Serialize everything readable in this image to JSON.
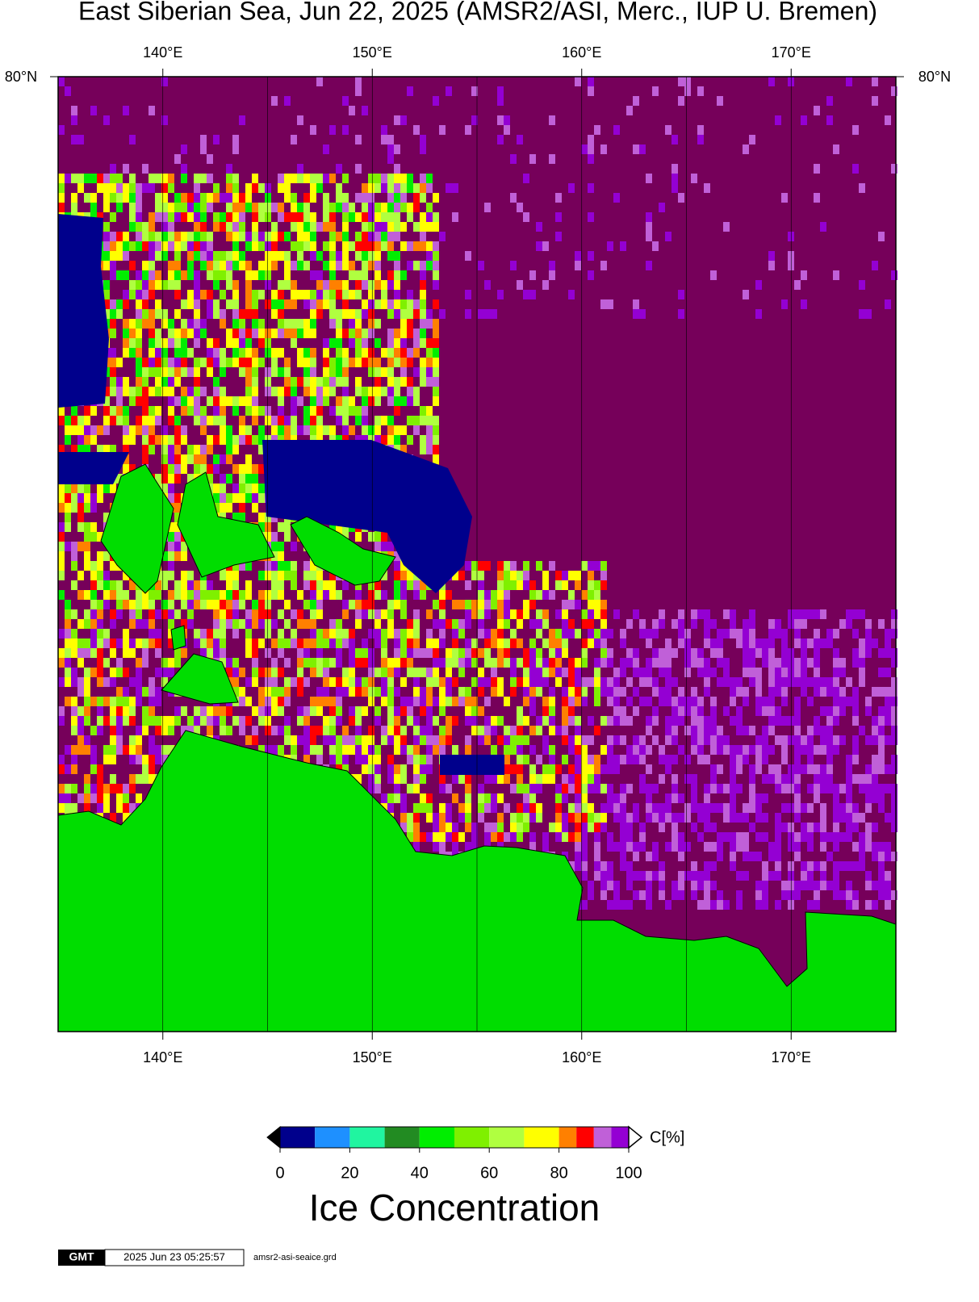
{
  "title": "East Siberian Sea, Jun 22, 2025 (AMSR2/ASI, Merc., IUP U. Bremen)",
  "map": {
    "xlim": [
      135,
      175
    ],
    "xticks": [
      {
        "value": 140,
        "label": "140°E"
      },
      {
        "value": 150,
        "label": "150°E"
      },
      {
        "value": 160,
        "label": "160°E"
      },
      {
        "value": 170,
        "label": "170°E"
      }
    ],
    "lat_label": "80°N"
  },
  "colorbar": {
    "label": "C[%]",
    "title": "Ice Concentration",
    "ticks": [
      0,
      20,
      40,
      60,
      80,
      100
    ],
    "boundaries": [
      0,
      10,
      20,
      30,
      40,
      50,
      60,
      70,
      80,
      85,
      90,
      95,
      100
    ],
    "colors": [
      "#00008c",
      "#1e90ff",
      "#20f5a0",
      "#228b22",
      "#00ee00",
      "#7ff000",
      "#b0ff40",
      "#ffff00",
      "#ff8000",
      "#ff0000",
      "#c060d8",
      "#9400d3"
    ]
  },
  "footer": {
    "logo": "GMT",
    "timestamp": "2025 Jun 23 05:25:57",
    "file": "amsr2-asi-seaice.grd"
  }
}
